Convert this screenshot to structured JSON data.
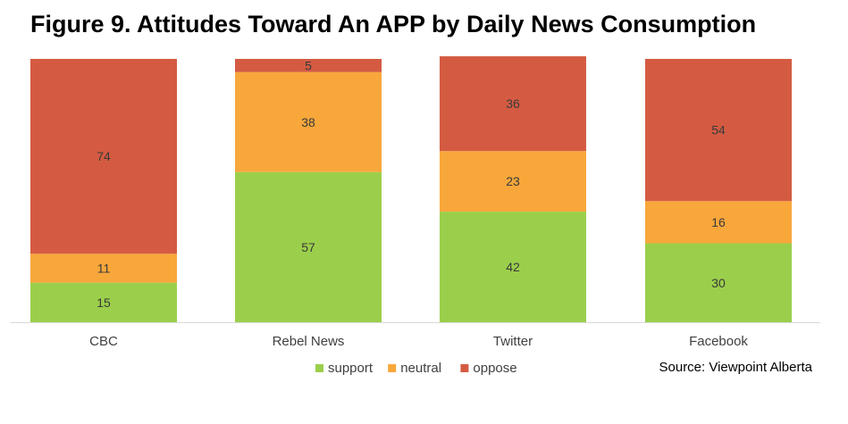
{
  "title": "Figure 9. Attitudes Toward An APP by Daily News Consumption",
  "source": "Source: Viewpoint Alberta",
  "chart_data": {
    "type": "bar",
    "stacked": true,
    "categories": [
      "CBC",
      "Rebel News",
      "Twitter",
      "Facebook"
    ],
    "series": [
      {
        "name": "support",
        "color": "#9BCF4B",
        "values": [
          15,
          57,
          42,
          30
        ]
      },
      {
        "name": "neutral",
        "color": "#F8A73B",
        "values": [
          11,
          38,
          23,
          16
        ]
      },
      {
        "name": "oppose",
        "color": "#D45B42",
        "values": [
          74,
          5,
          36,
          54
        ]
      }
    ],
    "ylim": [
      0,
      100
    ],
    "grid": false,
    "legend": "bottom"
  }
}
